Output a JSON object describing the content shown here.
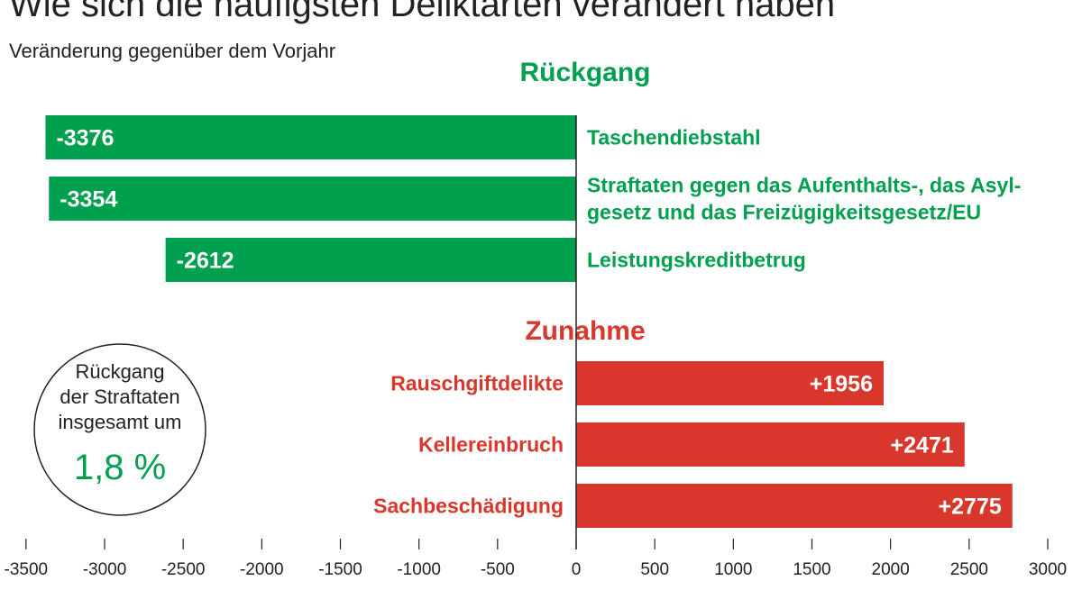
{
  "title": "Wie sich die häufigsten Deliktarten verändert haben",
  "subtitle": "Veränderung gegenüber dem Vorjahr",
  "colors": {
    "decrease": "#00a04f",
    "increase": "#d9372b"
  },
  "chart_data": {
    "type": "bar",
    "orientation": "horizontal",
    "groups": [
      {
        "label": "Rückgang",
        "items": [
          {
            "category": [
              "Taschendiebstahl"
            ],
            "value": -3376,
            "label": "-3376"
          },
          {
            "category": [
              "Straftaten gegen das Aufenthalts-, das Asyl-",
              "gesetz und das Freizügigkeitsgesetz/EU"
            ],
            "value": -3354,
            "label": "-3354"
          },
          {
            "category": [
              "Leistungskreditbetrug"
            ],
            "value": -2612,
            "label": "-2612"
          }
        ]
      },
      {
        "label": "Zunahme",
        "items": [
          {
            "category": [
              "Rauschgiftdelikte"
            ],
            "value": 1956,
            "label": "+1956"
          },
          {
            "category": [
              "Kellereinbruch"
            ],
            "value": 2471,
            "label": "+2471"
          },
          {
            "category": [
              "Sachbeschädigung"
            ],
            "value": 2775,
            "label": "+2775"
          }
        ]
      }
    ],
    "xlim": [
      -3500,
      3000
    ],
    "xticks": [
      "-3500",
      "-3000",
      "-2500",
      "-2000",
      "-1500",
      "-1000",
      "-500",
      "0",
      "500",
      "1000",
      "1500",
      "2000",
      "2500",
      "3000"
    ],
    "grid": false
  },
  "callout": {
    "lines": [
      "Rückgang",
      "der Straftaten",
      "insgesamt um"
    ],
    "value": "1,8 %"
  }
}
